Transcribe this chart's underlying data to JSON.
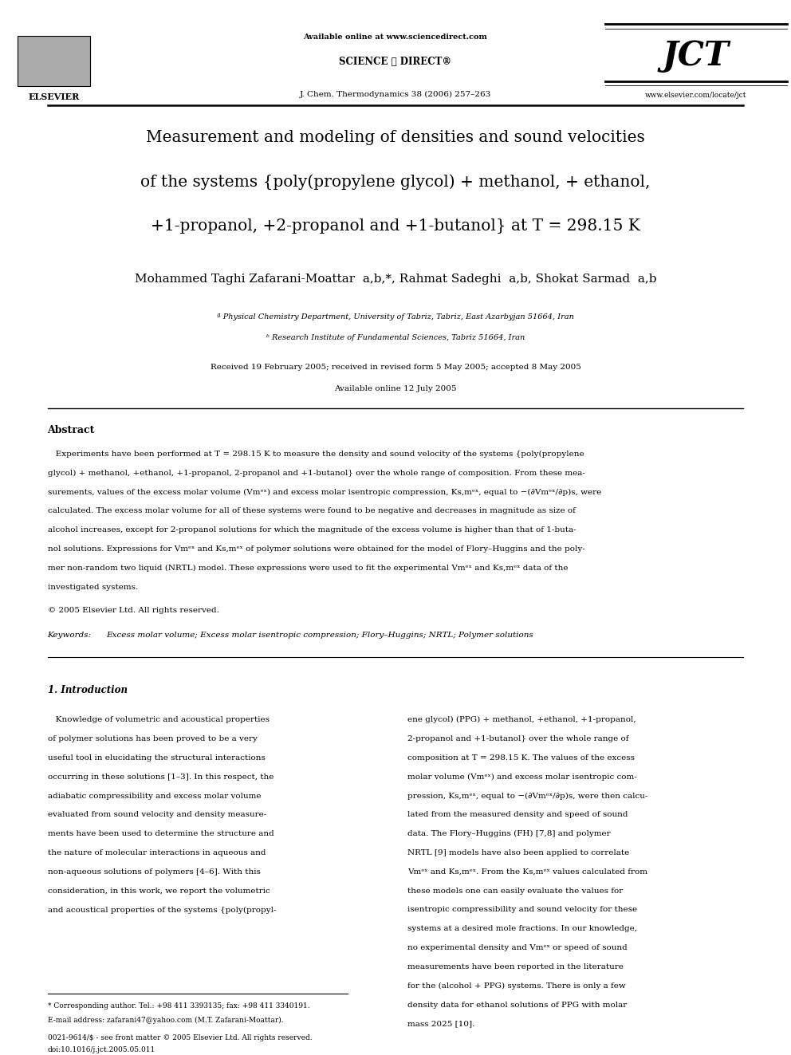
{
  "background_color": "#ffffff",
  "header": {
    "available_online": "Available online at www.sciencedirect.com",
    "sciencedirect": "SCIENCE ⓓ DIRECT®",
    "journal": "J. Chem. Thermodynamics 38 (2006) 257–263",
    "elsevier_text": "ELSEVIER",
    "jct_text": "JCT",
    "website": "www.elsevier.com/locate/jct"
  },
  "title_lines": [
    "Measurement and modeling of densities and sound velocities",
    "of the systems {poly(propylene glycol) + methanol, + ethanol,",
    "+1-propanol, +2-propanol and +1-butanol} at T = 298.15 K"
  ],
  "authors": "Mohammed Taghi Zafarani-Moattar  a,b,*, Rahmat Sadeghi  a,b, Shokat Sarmad  a,b",
  "affil_a": "ª Physical Chemistry Department, University of Tabriz, Tabriz, East Azarbyjan 51664, Iran",
  "affil_b": "ᵇ Research Institute of Fundamental Sciences, Tabriz 51664, Iran",
  "received": "Received 19 February 2005; received in revised form 5 May 2005; accepted 8 May 2005",
  "online": "Available online 12 July 2005",
  "abstract_title": "Abstract",
  "copyright": "© 2005 Elsevier Ltd. All rights reserved.",
  "keywords_label": "Keywords:",
  "keywords_text": "Excess molar volume; Excess molar isentropic compression; Flory–Huggins; NRTL; Polymer solutions",
  "intro_title": "1. Introduction",
  "footnote_star": "* Corresponding author. Tel.: +98 411 3393135; fax: +98 411 3340191.",
  "footnote_email": "E-mail address: zafarani47@yahoo.com (M.T. Zafarani-Moattar).",
  "footer_line1": "0021-9614/$ - see front matter © 2005 Elsevier Ltd. All rights reserved.",
  "footer_line2": "doi:10.1016/j.jct.2005.05.011",
  "abs_lines": [
    "   Experiments have been performed at T = 298.15 K to measure the density and sound velocity of the systems {poly(propylene",
    "glycol) + methanol, +ethanol, +1-propanol, 2-propanol and +1-butanol} over the whole range of composition. From these mea-",
    "surements, values of the excess molar volume (Vmᵉˣ) and excess molar isentropic compression, Ks,mᵉˣ, equal to −(∂Vmᵉˣ/∂p)s, were",
    "calculated. The excess molar volume for all of these systems were found to be negative and decreases in magnitude as size of",
    "alcohol increases, except for 2-propanol solutions for which the magnitude of the excess volume is higher than that of 1-buta-",
    "nol solutions. Expressions for Vmᵉˣ and Ks,mᵉˣ of polymer solutions were obtained for the model of Flory–Huggins and the poly-",
    "mer non-random two liquid (NRTL) model. These expressions were used to fit the experimental Vmᵉˣ and Ks,mᵉˣ data of the",
    "investigated systems."
  ],
  "intro_left_lines": [
    "   Knowledge of volumetric and acoustical properties",
    "of polymer solutions has been proved to be a very",
    "useful tool in elucidating the structural interactions",
    "occurring in these solutions [1–3]. In this respect, the",
    "adiabatic compressibility and excess molar volume",
    "evaluated from sound velocity and density measure-",
    "ments have been used to determine the structure and",
    "the nature of molecular interactions in aqueous and",
    "non-aqueous solutions of polymers [4–6]. With this",
    "consideration, in this work, we report the volumetric",
    "and acoustical properties of the systems {poly(propyl-"
  ],
  "intro_right_lines": [
    "ene glycol) (PPG) + methanol, +ethanol, +1-propanol,",
    "2-propanol and +1-butanol} over the whole range of",
    "composition at T = 298.15 K. The values of the excess",
    "molar volume (Vmᵉˣ) and excess molar isentropic com-",
    "pression, Ks,mᵉˣ, equal to −(∂Vmᵉˣ/∂p)s, were then calcu-",
    "lated from the measured density and speed of sound",
    "data. The Flory–Huggins (FH) [7,8] and polymer",
    "NRTL [9] models have also been applied to correlate",
    "Vmᵉˣ and Ks,mᵉˣ. From the Ks,mᵉˣ values calculated from",
    "these models one can easily evaluate the values for",
    "isentropic compressibility and sound velocity for these",
    "systems at a desired mole fractions. In our knowledge,",
    "no experimental density and Vmᵉˣ or speed of sound",
    "measurements have been reported in the literature",
    "for the (alcohol + PPG) systems. There is only a few",
    "density data for ethanol solutions of PPG with molar",
    "mass 2025 [10]."
  ]
}
